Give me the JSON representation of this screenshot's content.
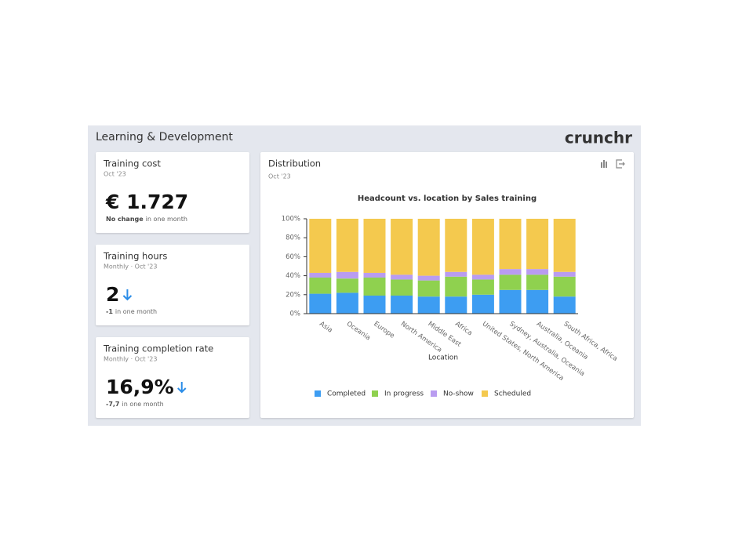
{
  "header": {
    "title": "Learning & Development",
    "logo": "crunchr"
  },
  "cards": [
    {
      "title": "Training cost",
      "period": "Oct '23",
      "value": "€ 1.727",
      "change": "No change",
      "change_text": "in one month"
    },
    {
      "title": "Training hours",
      "period": "Monthly · Oct '23",
      "value": "2",
      "change": "-1",
      "change_text": "in one month",
      "trend": "down"
    },
    {
      "title": "Training completion rate",
      "period": "Monthly · Oct '23",
      "value": "16,9%",
      "change": "-7,7",
      "change_text": "in one month",
      "trend": "down"
    }
  ],
  "distribution": {
    "title": "Distribution",
    "period": "Oct '23"
  },
  "chart_data": {
    "type": "stacked_bar",
    "title": "Headcount vs. location by Sales training",
    "x_label": "Location",
    "categories": [
      "Asia",
      "Oceania",
      "Europe",
      "North America",
      "Middle East",
      "Africa",
      "United States, North America",
      "Sydney, Australia, Oceania",
      "Australia, Oceania",
      "South Africa, Africa"
    ],
    "series": [
      {
        "name": "Completed",
        "color": "#3d9df2",
        "values": [
          21,
          22,
          19,
          19,
          18,
          18,
          20,
          25,
          25,
          18
        ]
      },
      {
        "name": "In progress",
        "color": "#8fd14f",
        "values": [
          17,
          15,
          19,
          17,
          17,
          21,
          16,
          16,
          16,
          21
        ]
      },
      {
        "name": "No-show",
        "color": "#b99cf0",
        "values": [
          5,
          7,
          5,
          5,
          5,
          5,
          5,
          6,
          6,
          5
        ]
      },
      {
        "name": "Scheduled",
        "color": "#f4c94e",
        "values": [
          57,
          56,
          57,
          59,
          60,
          56,
          59,
          53,
          53,
          56
        ]
      }
    ],
    "ylim": [
      0,
      100
    ],
    "yticks": [
      {
        "value": 0,
        "label": "0%"
      },
      {
        "value": 20,
        "label": "20%"
      },
      {
        "value": 40,
        "label": "40%"
      },
      {
        "value": 60,
        "label": "60%"
      },
      {
        "value": 80,
        "label": "80%"
      },
      {
        "value": 100,
        "label": "100%"
      }
    ]
  }
}
